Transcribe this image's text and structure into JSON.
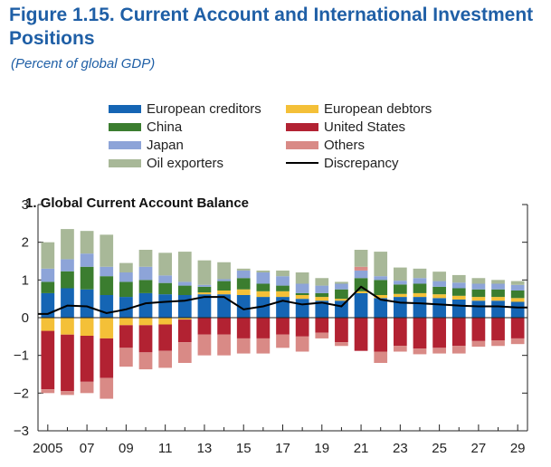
{
  "figure": {
    "title": "Figure 1.15.  Current Account and International Investment Positions",
    "subtitle": "(Percent of global GDP)"
  },
  "colors": {
    "title": "#1f5fa6",
    "European creditors": "#1565b4",
    "European debtors": "#f4c038",
    "China": "#3b7d2f",
    "United States": "#b22232",
    "Japan": "#8da4d8",
    "Others": "#d98a86",
    "Oil exporters": "#a8b898",
    "Discrepancy": "#000000"
  },
  "legend": [
    {
      "label": "European creditors",
      "kind": "bar"
    },
    {
      "label": "European debtors",
      "kind": "bar"
    },
    {
      "label": "China",
      "kind": "bar"
    },
    {
      "label": "United States",
      "kind": "bar"
    },
    {
      "label": "Japan",
      "kind": "bar"
    },
    {
      "label": "Others",
      "kind": "bar"
    },
    {
      "label": "Oil exporters",
      "kind": "bar"
    },
    {
      "label": "Discrepancy",
      "kind": "line"
    }
  ],
  "chart_data": {
    "type": "bar",
    "stacked": true,
    "panel_number": "1.",
    "title": "Global Current Account Balance",
    "x": [
      "2005",
      "2006",
      "2007",
      "2008",
      "2009",
      "2010",
      "2011",
      "2012",
      "2013",
      "2014",
      "2015",
      "2016",
      "2017",
      "2018",
      "2019",
      "2020",
      "2021",
      "2022",
      "2023",
      "2024",
      "2025",
      "2026",
      "2027",
      "2028",
      "2029"
    ],
    "xtick_labels": [
      "2005",
      "07",
      "09",
      "11",
      "13",
      "15",
      "17",
      "19",
      "21",
      "23",
      "25",
      "27",
      "29"
    ],
    "ylim": [
      -3,
      3
    ],
    "yticks": [
      -3,
      -2,
      -1,
      0,
      1,
      2,
      3
    ],
    "grid": false,
    "legend_position": "top",
    "series": [
      {
        "name": "European creditors",
        "values": [
          0.65,
          0.78,
          0.75,
          0.6,
          0.55,
          0.65,
          0.62,
          0.6,
          0.62,
          0.62,
          0.6,
          0.55,
          0.55,
          0.5,
          0.45,
          0.45,
          0.65,
          0.52,
          0.55,
          0.55,
          0.52,
          0.48,
          0.45,
          0.45,
          0.42
        ]
      },
      {
        "name": "European debtors",
        "values": [
          -0.35,
          -0.45,
          -0.48,
          -0.55,
          -0.2,
          -0.2,
          -0.18,
          -0.05,
          0.05,
          0.1,
          0.15,
          0.15,
          0.15,
          0.1,
          0.1,
          0.05,
          0.05,
          0.08,
          0.08,
          0.1,
          0.1,
          0.1,
          0.1,
          0.1,
          0.1
        ]
      },
      {
        "name": "China",
        "values": [
          0.3,
          0.45,
          0.6,
          0.5,
          0.4,
          0.35,
          0.3,
          0.25,
          0.15,
          0.25,
          0.3,
          0.2,
          0.15,
          0.05,
          0.1,
          0.25,
          0.35,
          0.4,
          0.25,
          0.25,
          0.2,
          0.2,
          0.2,
          0.2,
          0.2
        ]
      },
      {
        "name": "United States",
        "values": [
          -1.55,
          -1.5,
          -1.22,
          -1.05,
          -0.6,
          -0.72,
          -0.7,
          -0.6,
          -0.45,
          -0.45,
          -0.55,
          -0.55,
          -0.45,
          -0.5,
          -0.4,
          -0.65,
          -0.88,
          -0.9,
          -0.75,
          -0.82,
          -0.8,
          -0.75,
          -0.62,
          -0.6,
          -0.55
        ]
      },
      {
        "name": "Japan",
        "values": [
          0.35,
          0.32,
          0.35,
          0.25,
          0.25,
          0.35,
          0.2,
          0.1,
          0.05,
          0.05,
          0.2,
          0.3,
          0.25,
          0.25,
          0.2,
          0.15,
          0.2,
          0.1,
          0.1,
          0.15,
          0.15,
          0.15,
          0.15,
          0.15,
          0.15
        ]
      },
      {
        "name": "Others",
        "values": [
          -0.1,
          -0.1,
          -0.3,
          -0.55,
          -0.5,
          -0.45,
          -0.45,
          -0.55,
          -0.55,
          -0.55,
          -0.4,
          -0.4,
          -0.35,
          -0.4,
          -0.15,
          -0.1,
          0.1,
          -0.3,
          -0.15,
          -0.15,
          -0.15,
          -0.2,
          -0.15,
          -0.15,
          -0.15
        ]
      },
      {
        "name": "Oil exporters",
        "values": [
          0.7,
          0.8,
          0.6,
          0.85,
          0.25,
          0.45,
          0.6,
          0.8,
          0.65,
          0.45,
          0.05,
          0.05,
          0.15,
          0.3,
          0.2,
          0.05,
          0.45,
          0.65,
          0.35,
          0.25,
          0.25,
          0.2,
          0.15,
          0.1,
          0.1
        ]
      },
      {
        "name": "Discrepancy",
        "type": "line",
        "values": [
          0.1,
          0.32,
          0.3,
          0.12,
          0.22,
          0.38,
          0.42,
          0.45,
          0.55,
          0.55,
          0.22,
          0.3,
          0.45,
          0.35,
          0.4,
          0.3,
          0.82,
          0.48,
          0.4,
          0.38,
          0.35,
          0.32,
          0.3,
          0.3,
          0.27
        ]
      }
    ]
  }
}
